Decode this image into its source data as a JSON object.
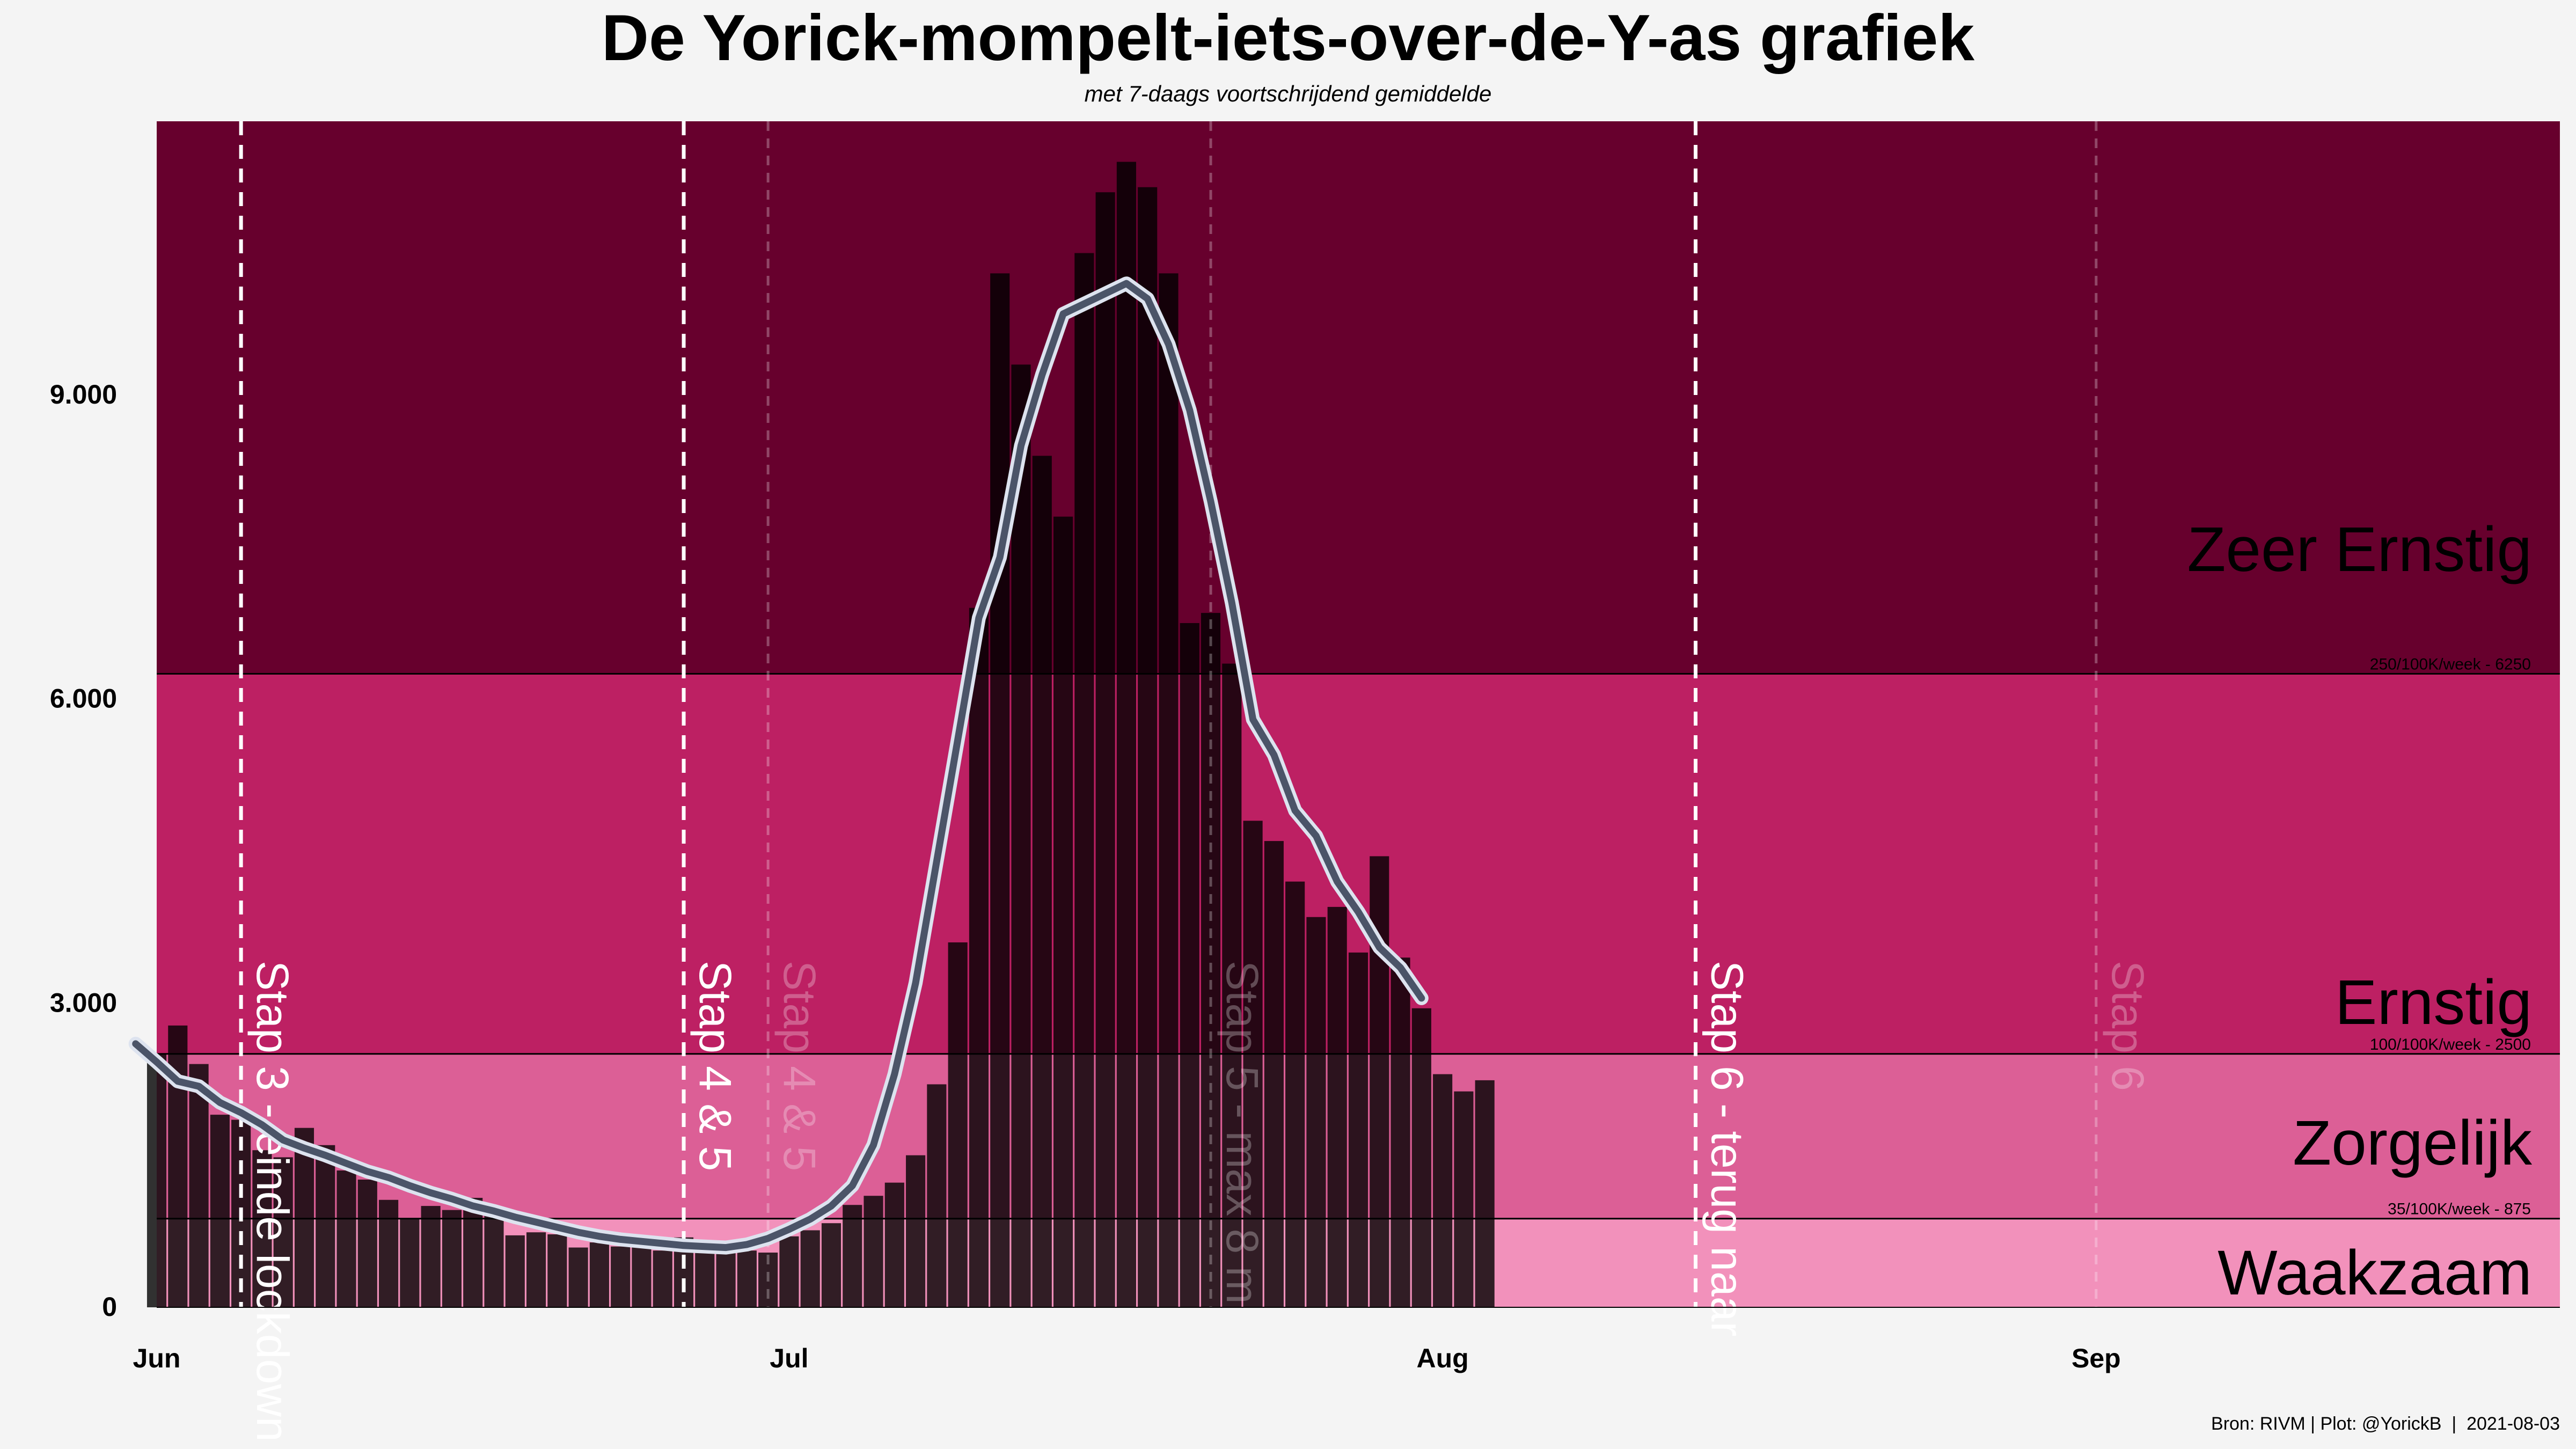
{
  "chart_data": {
    "type": "bar",
    "title": "De Yorick-mompelt-iets-over-de-Y-as grafiek",
    "subtitle": "met 7-daags voortschrijdend gemiddelde",
    "caption": "Bron: RIVM | Plot: @YorickB  |  2021-08-03",
    "xlabel": "",
    "ylabel": "",
    "xlim": [
      "2021-06-01",
      "2021-09-23"
    ],
    "ylim": [
      0,
      11700
    ],
    "x_ticks": [
      {
        "date": "2021-06-01",
        "label": "Jun"
      },
      {
        "date": "2021-07-01",
        "label": "Jul"
      },
      {
        "date": "2021-08-01",
        "label": "Aug"
      },
      {
        "date": "2021-09-01",
        "label": "Sep"
      }
    ],
    "y_ticks": [
      {
        "value": 0,
        "label": "0"
      },
      {
        "value": 3000,
        "label": "3.000"
      },
      {
        "value": 6000,
        "label": "6.000"
      },
      {
        "value": 9000,
        "label": "9.000"
      }
    ],
    "grid": false,
    "risk_bands": [
      {
        "name": "Waakzaam",
        "from": 0,
        "to": 875,
        "color": "#f291bb"
      },
      {
        "name": "Zorgelijk",
        "from": 875,
        "to": 2500,
        "color": "#dc5f96"
      },
      {
        "name": "Ernstig",
        "from": 2500,
        "to": 6250,
        "color": "#bd2063"
      },
      {
        "name": "Zeer Ernstig",
        "from": 6250,
        "to": 11700,
        "color": "#67002d"
      }
    ],
    "thresholds": [
      {
        "value": 875,
        "label": "35/100K/week - 875"
      },
      {
        "value": 2500,
        "label": "100/100K/week - 2500"
      },
      {
        "value": 6250,
        "label": "250/100K/week - 6250"
      }
    ],
    "events": [
      {
        "date": "2021-06-05",
        "label": "Stap 3 - einde lockdown",
        "style": "solid-white"
      },
      {
        "date": "2021-06-26",
        "label": "Stap 4 & 5",
        "style": "solid-white"
      },
      {
        "date": "2021-06-30",
        "label": "Stap 4 & 5",
        "style": "faded"
      },
      {
        "date": "2021-07-21",
        "label": "Stap 5 - max 8 m",
        "style": "faded"
      },
      {
        "date": "2021-08-13",
        "label": "Stap 6 - terug naar",
        "style": "solid-white"
      },
      {
        "date": "2021-09-01",
        "label": "Stap 6",
        "style": "faded"
      }
    ],
    "bar_color": "#000000",
    "line_color": "#4b5468",
    "line_outline_color": "#dde3ef",
    "series": [
      {
        "type": "bar",
        "start_date": "2021-06-01",
        "values": [
          2500,
          2780,
          2400,
          1900,
          1850,
          1550,
          1480,
          1770,
          1600,
          1350,
          1260,
          1060,
          880,
          1000,
          960,
          1080,
          920,
          710,
          740,
          720,
          590,
          640,
          600,
          610,
          560,
          690,
          610,
          540,
          560,
          540,
          700,
          760,
          830,
          1010,
          1100,
          1230,
          1500,
          2200,
          3600,
          6900,
          10200,
          9300,
          8400,
          7800,
          10400,
          11000,
          11300,
          11050,
          10200,
          6750,
          6850,
          6350,
          4800,
          4600,
          4200,
          3850,
          3950,
          3500,
          4450,
          3450,
          2950,
          2300,
          2130,
          2240
        ]
      },
      {
        "type": "line",
        "start_date": "2021-05-31",
        "values": [
          2600,
          2420,
          2230,
          2180,
          2020,
          1920,
          1800,
          1650,
          1570,
          1500,
          1420,
          1340,
          1280,
          1200,
          1130,
          1070,
          1000,
          950,
          890,
          840,
          790,
          740,
          700,
          670,
          650,
          630,
          610,
          600,
          590,
          620,
          680,
          770,
          870,
          1000,
          1200,
          1600,
          2300,
          3200,
          4400,
          5600,
          6800,
          7400,
          8500,
          9200,
          9800,
          9900,
          10000,
          10100,
          9950,
          9500,
          8850,
          7950,
          6950,
          5800,
          5450,
          4900,
          4650,
          4200,
          3900,
          3550,
          3350,
          3050
        ]
      }
    ]
  }
}
